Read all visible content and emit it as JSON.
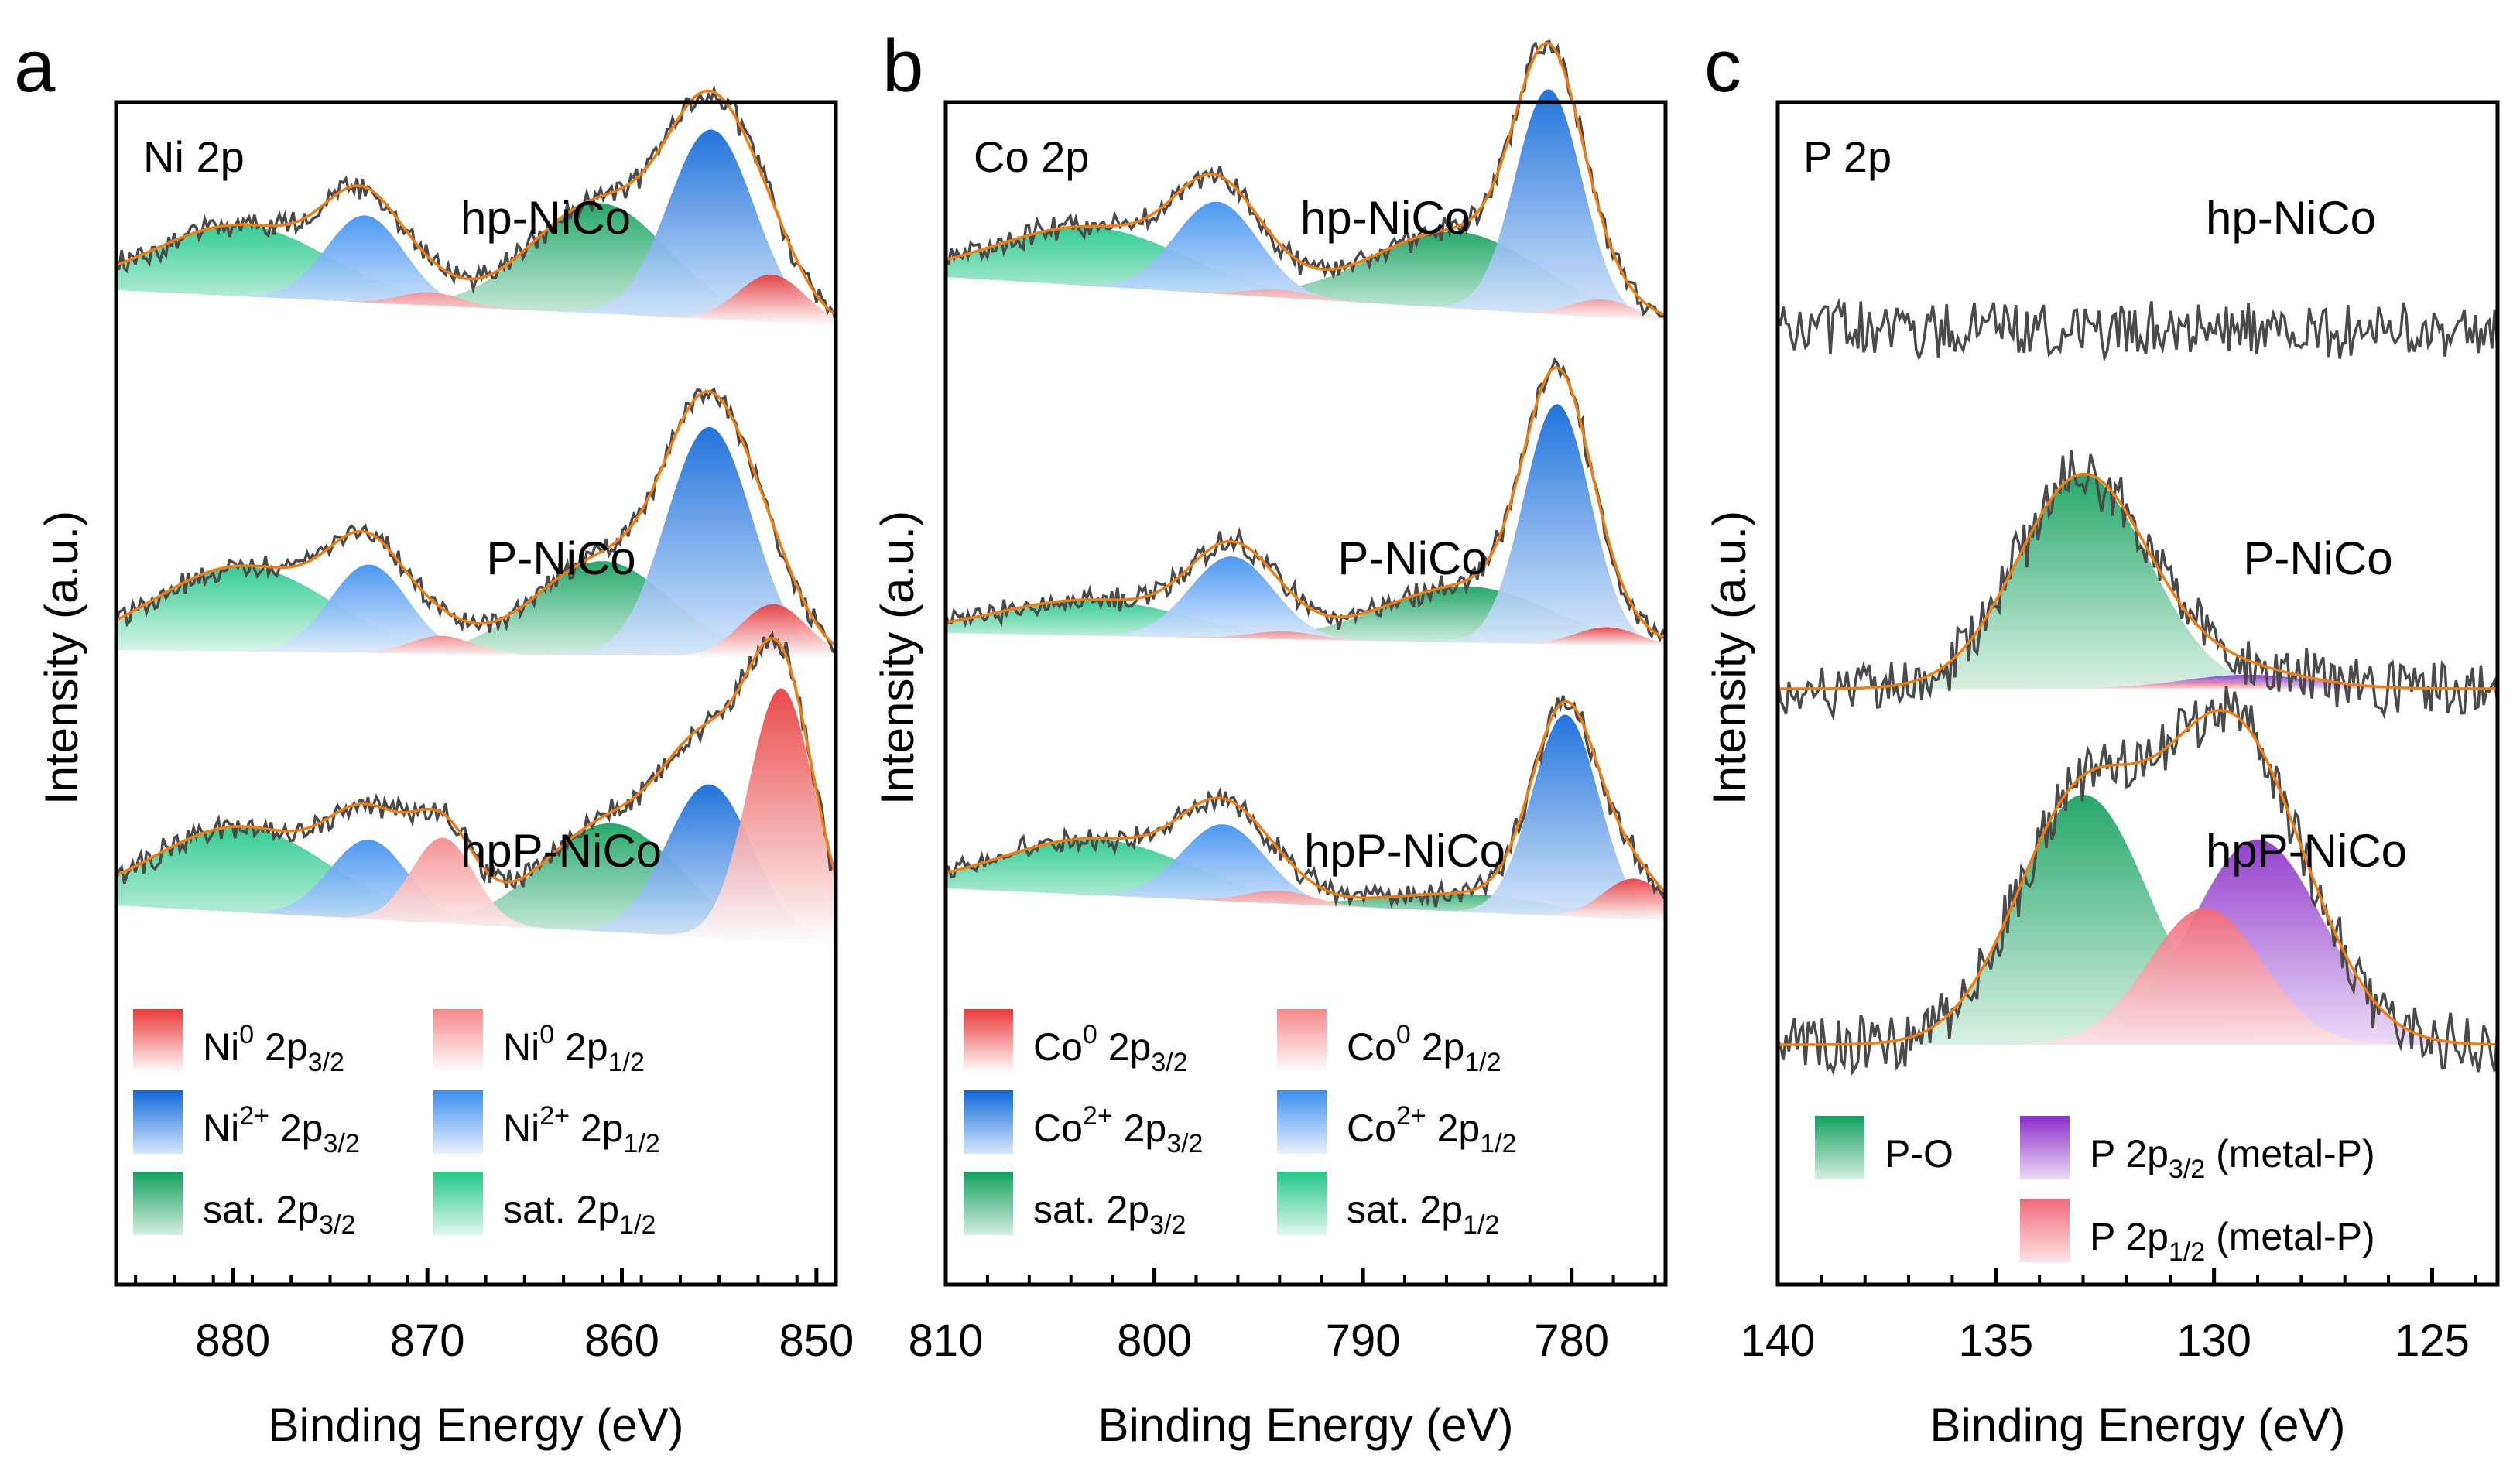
{
  "chart_data": [
    {
      "type": "xps_spectra",
      "panel": "a",
      "title": "Ni 2p",
      "xlabel": "Binding Energy (eV)",
      "ylabel": "Intensity (a.u.)",
      "xlim": [
        886,
        849
      ],
      "xticks": [
        880,
        870,
        860,
        850
      ],
      "xtick_labels": [
        "880",
        "870",
        "860",
        "850"
      ],
      "samples": [
        "hp-NiCo",
        "P-NiCo",
        "hpP-NiCo"
      ],
      "series": [
        {
          "sample": "hp-NiCo",
          "peaks": [
            {
              "component": "Ni0 2p3/2",
              "center": 852.3,
              "height": 0.18
            },
            {
              "component": "Ni0 2p1/2",
              "center": 869.8,
              "height": 0.05
            },
            {
              "component": "Ni2+ 2p3/2",
              "center": 855.4,
              "height": 0.72
            },
            {
              "component": "Ni2+ 2p1/2",
              "center": 873.2,
              "height": 0.33
            },
            {
              "component": "sat. 2p3/2",
              "center": 861.1,
              "height": 0.42
            },
            {
              "component": "sat. 2p1/2",
              "center": 879.5,
              "height": 0.27
            }
          ]
        },
        {
          "sample": "P-NiCo",
          "peaks": [
            {
              "component": "Ni0 2p3/2",
              "center": 852.2,
              "height": 0.18
            },
            {
              "component": "Ni0 2p1/2",
              "center": 869.3,
              "height": 0.06
            },
            {
              "component": "Ni2+ 2p3/2",
              "center": 855.5,
              "height": 0.78
            },
            {
              "component": "Ni2+ 2p1/2",
              "center": 873.0,
              "height": 0.3
            },
            {
              "component": "sat. 2p3/2",
              "center": 861.0,
              "height": 0.32
            },
            {
              "component": "sat. 2p1/2",
              "center": 879.5,
              "height": 0.29
            }
          ]
        },
        {
          "sample": "hpP-NiCo",
          "peaks": [
            {
              "component": "Ni0 2p3/2",
              "center": 851.8,
              "height": 0.86
            },
            {
              "component": "Ni0 2p1/2",
              "center": 869.2,
              "height": 0.29
            },
            {
              "component": "Ni2+ 2p3/2",
              "center": 855.5,
              "height": 0.52
            },
            {
              "component": "Ni2+ 2p1/2",
              "center": 873.0,
              "height": 0.27
            },
            {
              "component": "sat. 2p3/2",
              "center": 860.5,
              "height": 0.37
            },
            {
              "component": "sat. 2p1/2",
              "center": 879.5,
              "height": 0.29
            }
          ]
        }
      ],
      "legend": [
        {
          "base": "Ni",
          "sup": "0",
          "mid": " 2p",
          "sub": "3/2",
          "color_top": "#e83a3a",
          "color_bottom": "#ffffff"
        },
        {
          "base": "Ni",
          "sup": "0",
          "mid": " 2p",
          "sub": "1/2",
          "color_top": "#f48a8a",
          "color_bottom": "#ffffff"
        },
        {
          "base": "Ni",
          "sup": "2+",
          "mid": " 2p",
          "sub": "3/2",
          "color_top": "#0f68d8",
          "color_bottom": "#d8e8fb"
        },
        {
          "base": "Ni",
          "sup": "2+",
          "mid": " 2p",
          "sub": "1/2",
          "color_top": "#3d8ff0",
          "color_bottom": "#e8f1fd"
        },
        {
          "base": "sat.",
          "sup": "",
          "mid": " 2p",
          "sub": "3/2",
          "color_top": "#13a15f",
          "color_bottom": "#d5efe1"
        },
        {
          "base": "sat.",
          "sup": "",
          "mid": " 2p",
          "sub": "1/2",
          "color_top": "#22c88a",
          "color_bottom": "#e2f7ee"
        }
      ]
    },
    {
      "type": "xps_spectra",
      "panel": "b",
      "title": "Co 2p",
      "xlabel": "Binding Energy (eV)",
      "ylabel": "Intensity (a.u.)",
      "xlim": [
        810,
        775.5
      ],
      "xticks": [
        810,
        800,
        790,
        780
      ],
      "xtick_labels": [
        "810",
        "800",
        "790",
        "780"
      ],
      "samples": [
        "hp-NiCo",
        "P-NiCo",
        "hpP-NiCo"
      ],
      "series": [
        {
          "sample": "hp-NiCo",
          "peaks": [
            {
              "component": "Co0 2p3/2",
              "center": 778.5,
              "height": 0.07
            },
            {
              "component": "Co0 2p1/2",
              "center": 794.0,
              "height": 0.03
            },
            {
              "component": "Co2+ 2p3/2",
              "center": 781.1,
              "height": 0.88
            },
            {
              "component": "Co2+ 2p1/2",
              "center": 797.0,
              "height": 0.36
            },
            {
              "component": "sat. 2p3/2",
              "center": 785.5,
              "height": 0.3
            },
            {
              "component": "sat. 2p1/2",
              "center": 803.0,
              "height": 0.23
            }
          ]
        },
        {
          "sample": "P-NiCo",
          "peaks": [
            {
              "component": "Co0 2p3/2",
              "center": 778.3,
              "height": 0.07
            },
            {
              "component": "Co0 2p1/2",
              "center": 793.8,
              "height": 0.03
            },
            {
              "component": "Co2+ 2p3/2",
              "center": 780.7,
              "height": 0.94
            },
            {
              "component": "Co2+ 2p1/2",
              "center": 796.3,
              "height": 0.32
            },
            {
              "component": "sat. 2p3/2",
              "center": 785.0,
              "height": 0.22
            },
            {
              "component": "sat. 2p1/2",
              "center": 803.0,
              "height": 0.14
            }
          ]
        },
        {
          "sample": "hpP-NiCo",
          "peaks": [
            {
              "component": "Co0 2p3/2",
              "center": 777.0,
              "height": 0.16
            },
            {
              "component": "Co0 2p1/2",
              "center": 794.0,
              "height": 0.05
            },
            {
              "component": "Co2+ 2p3/2",
              "center": 780.3,
              "height": 0.79
            },
            {
              "component": "Co2+ 2p1/2",
              "center": 796.7,
              "height": 0.3
            },
            {
              "component": "sat. 2p3/2",
              "center": 784.8,
              "height": 0.07
            },
            {
              "component": "sat. 2p1/2",
              "center": 802.8,
              "height": 0.22
            }
          ]
        }
      ],
      "legend": [
        {
          "base": "Co",
          "sup": "0",
          "mid": " 2p",
          "sub": "3/2",
          "color_top": "#e83a3a",
          "color_bottom": "#ffffff"
        },
        {
          "base": "Co",
          "sup": "0",
          "mid": " 2p",
          "sub": "1/2",
          "color_top": "#f48a8a",
          "color_bottom": "#ffffff"
        },
        {
          "base": "Co",
          "sup": "2+",
          "mid": " 2p",
          "sub": "3/2",
          "color_top": "#0f68d8",
          "color_bottom": "#d8e8fb"
        },
        {
          "base": "Co",
          "sup": "2+",
          "mid": " 2p",
          "sub": "1/2",
          "color_top": "#3d8ff0",
          "color_bottom": "#e8f1fd"
        },
        {
          "base": "sat.",
          "sup": "",
          "mid": " 2p",
          "sub": "3/2",
          "color_top": "#13a15f",
          "color_bottom": "#d5efe1"
        },
        {
          "base": "sat.",
          "sup": "",
          "mid": " 2p",
          "sub": "1/2",
          "color_top": "#22c88a",
          "color_bottom": "#e2f7ee"
        }
      ]
    },
    {
      "type": "xps_spectra",
      "panel": "c",
      "title": "P 2p",
      "xlabel": "Binding Energy (eV)",
      "ylabel": "Intensity (a.u.)",
      "xlim": [
        140,
        123.5
      ],
      "xticks": [
        140,
        135,
        130,
        125
      ],
      "xtick_labels": [
        "140",
        "135",
        "130",
        "125"
      ],
      "samples": [
        "hp-NiCo",
        "P-NiCo",
        "hpP-NiCo"
      ],
      "series": [
        {
          "sample": "hp-NiCo",
          "peaks": []
        },
        {
          "sample": "P-NiCo",
          "peaks": [
            {
              "component": "P-O",
              "center": 133.0,
              "height": 0.92
            },
            {
              "component": "P 2p3/2 (metal-P)",
              "center": 129.2,
              "height": 0.06
            },
            {
              "component": "P 2p1/2 (metal-P)",
              "center": 130.1,
              "height": 0.03
            }
          ]
        },
        {
          "sample": "hpP-NiCo",
          "peaks": [
            {
              "component": "P-O",
              "center": 133.0,
              "height": 0.95
            },
            {
              "component": "P 2p3/2 (metal-P)",
              "center": 129.0,
              "height": 0.78
            },
            {
              "component": "P 2p1/2 (metal-P)",
              "center": 130.2,
              "height": 0.52
            }
          ]
        }
      ],
      "legend": [
        {
          "base": "P-O",
          "sup": "",
          "mid": "",
          "sub": "",
          "after": "",
          "color_top": "#13a15f",
          "color_bottom": "#d5efe1"
        },
        {
          "base": "P 2p",
          "sup": "",
          "mid": "",
          "sub": "3/2",
          "after": " (metal-P)",
          "color_top": "#8a2fc8",
          "color_bottom": "#ead9f7"
        },
        {
          "base": "P 2p",
          "sup": "",
          "mid": "",
          "sub": "1/2",
          "after": " (metal-P)",
          "color_top": "#f06a78",
          "color_bottom": "#fde3e6"
        }
      ]
    }
  ]
}
